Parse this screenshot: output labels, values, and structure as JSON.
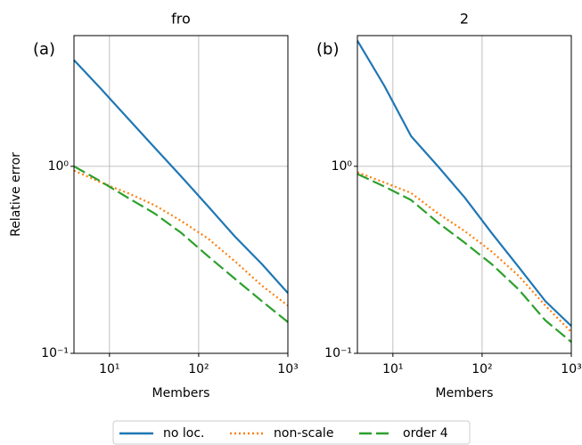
{
  "chart_data": [
    {
      "type": "line",
      "title": "fro",
      "panel_label": "(a)",
      "x_label": "Members",
      "y_label": "Relative error",
      "xscale": "log",
      "yscale": "log",
      "grid": true,
      "xlim": [
        4,
        1000
      ],
      "ylim": [
        0.1,
        5
      ],
      "xticks": [
        {
          "value": 10,
          "label": "10¹"
        },
        {
          "value": 100,
          "label": "10²"
        },
        {
          "value": 1000,
          "label": "10³"
        }
      ],
      "yticks": [
        {
          "value": 0.1,
          "label": "10⁻¹"
        },
        {
          "value": 1,
          "label": "10⁰"
        }
      ],
      "x": [
        4,
        8,
        16,
        32,
        64,
        128,
        256,
        512,
        1000
      ],
      "series": [
        {
          "name": "no loc.",
          "color": "#1f77b4",
          "linestyle": "solid",
          "values": [
            3.7,
            2.6,
            1.81,
            1.26,
            0.88,
            0.61,
            0.42,
            0.3,
            0.21
          ]
        },
        {
          "name": "non-scale",
          "color": "#ff7f0e",
          "linestyle": "dotted",
          "values": [
            0.95,
            0.82,
            0.72,
            0.62,
            0.51,
            0.41,
            0.31,
            0.23,
            0.18
          ]
        },
        {
          "name": "order 4",
          "color": "#2ca02c",
          "linestyle": "dashed",
          "values": [
            1.0,
            0.83,
            0.68,
            0.56,
            0.44,
            0.33,
            0.25,
            0.19,
            0.147
          ]
        }
      ],
      "legend": "bottom"
    },
    {
      "type": "line",
      "title": "2",
      "panel_label": "(b)",
      "x_label": "Members",
      "xscale": "log",
      "yscale": "log",
      "grid": true,
      "xlim": [
        4,
        1000
      ],
      "ylim": [
        0.1,
        5
      ],
      "xticks": [
        {
          "value": 10,
          "label": "10¹"
        },
        {
          "value": 100,
          "label": "10²"
        },
        {
          "value": 1000,
          "label": "10³"
        }
      ],
      "yticks": [
        {
          "value": 0.1,
          "label": "10⁻¹"
        },
        {
          "value": 1,
          "label": "10⁰"
        }
      ],
      "x": [
        4,
        8,
        16,
        32,
        64,
        128,
        256,
        512,
        1000
      ],
      "series": [
        {
          "color": "#1f77b4",
          "linestyle": "solid",
          "values": [
            4.7,
            2.7,
            1.45,
            1.0,
            0.68,
            0.44,
            0.29,
            0.19,
            0.14
          ]
        },
        {
          "color": "#ff7f0e",
          "linestyle": "dotted",
          "values": [
            0.93,
            0.82,
            0.72,
            0.56,
            0.45,
            0.35,
            0.26,
            0.18,
            0.13
          ]
        },
        {
          "color": "#2ca02c",
          "linestyle": "dashed",
          "values": [
            0.91,
            0.78,
            0.66,
            0.5,
            0.39,
            0.3,
            0.22,
            0.15,
            0.115
          ]
        }
      ]
    }
  ]
}
